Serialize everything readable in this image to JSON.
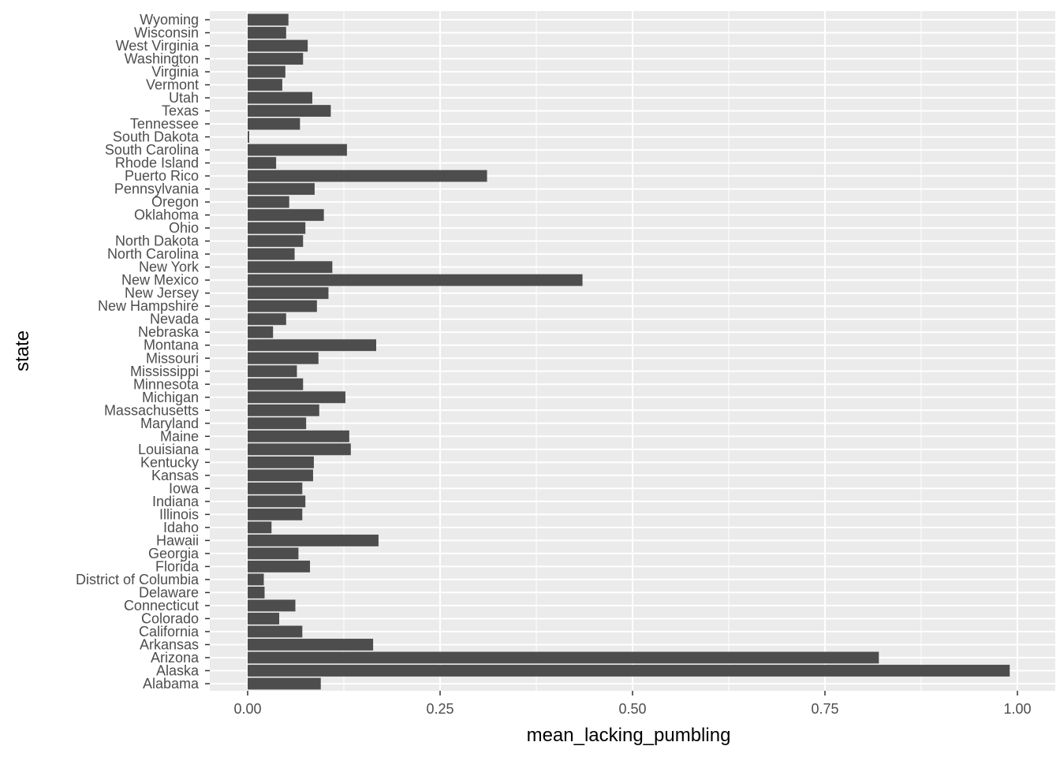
{
  "chart_data": {
    "type": "bar",
    "orientation": "horizontal",
    "xlabel": "mean_lacking_pumbling",
    "ylabel": "state",
    "xlim": [
      -0.05,
      1.0417
    ],
    "x_ticks": [
      0.0,
      0.25,
      0.5,
      0.75,
      1.0
    ],
    "x_tick_labels": [
      "0.00",
      "0.25",
      "0.50",
      "0.75",
      "1.00"
    ],
    "grid": true,
    "colors": {
      "panel": "#ebebeb",
      "grid": "#ffffff",
      "bar": "#4d4d4d",
      "tick_text": "#4d4d4d",
      "tick_mark": "#333333"
    },
    "categories": [
      "Alabama",
      "Alaska",
      "Arizona",
      "Arkansas",
      "California",
      "Colorado",
      "Connecticut",
      "Delaware",
      "District of Columbia",
      "Florida",
      "Georgia",
      "Hawaii",
      "Idaho",
      "Illinois",
      "Indiana",
      "Iowa",
      "Kansas",
      "Kentucky",
      "Louisiana",
      "Maine",
      "Maryland",
      "Massachusetts",
      "Michigan",
      "Minnesota",
      "Mississippi",
      "Missouri",
      "Montana",
      "Nebraska",
      "Nevada",
      "New Hampshire",
      "New Jersey",
      "New Mexico",
      "New York",
      "North Carolina",
      "North Dakota",
      "Ohio",
      "Oklahoma",
      "Oregon",
      "Pennsylvania",
      "Puerto Rico",
      "Rhode Island",
      "South Carolina",
      "South Dakota",
      "Tennessee",
      "Texas",
      "Utah",
      "Vermont",
      "Virginia",
      "Washington",
      "West Virginia",
      "Wisconsin",
      "Wyoming"
    ],
    "values": [
      0.095,
      0.99,
      0.82,
      0.163,
      0.071,
      0.041,
      0.062,
      0.022,
      0.021,
      0.081,
      0.066,
      0.17,
      0.031,
      0.071,
      0.075,
      0.071,
      0.085,
      0.086,
      0.134,
      0.132,
      0.076,
      0.093,
      0.127,
      0.072,
      0.064,
      0.092,
      0.167,
      0.033,
      0.05,
      0.09,
      0.105,
      0.435,
      0.11,
      0.061,
      0.072,
      0.075,
      0.099,
      0.054,
      0.087,
      0.311,
      0.037,
      0.129,
      0.002,
      0.068,
      0.108,
      0.084,
      0.045,
      0.049,
      0.072,
      0.078,
      0.05,
      0.053
    ]
  }
}
